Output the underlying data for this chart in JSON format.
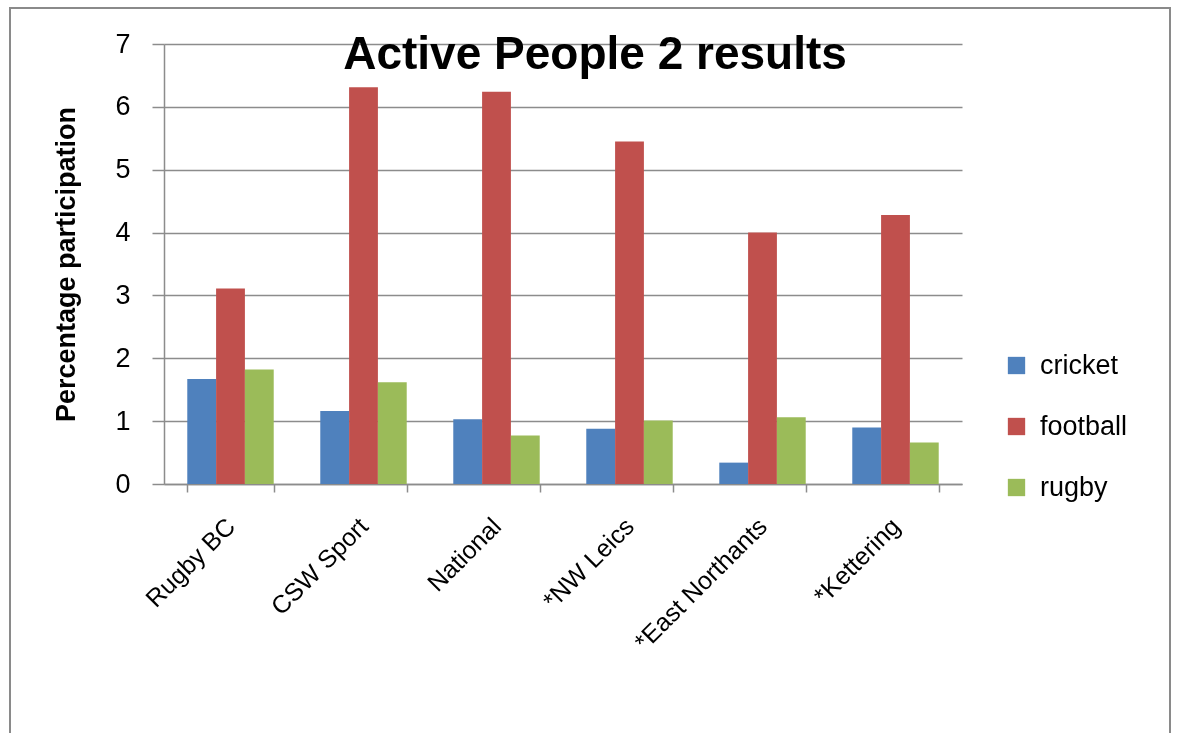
{
  "chart_data": {
    "type": "bar",
    "title": "Active People 2 results",
    "ylabel": "Percentage participation",
    "categories": [
      "Rugby BC",
      "CSW Sport",
      "National",
      "*NW Leics",
      "*East Northants",
      "*Kettering"
    ],
    "series": [
      {
        "name": "cricket",
        "color": "#4f81bd",
        "values": [
          1.67,
          1.16,
          1.03,
          0.88,
          0.34,
          0.9
        ]
      },
      {
        "name": "football",
        "color": "#c0504d",
        "values": [
          3.11,
          6.31,
          6.24,
          5.45,
          4.0,
          4.28
        ]
      },
      {
        "name": "rugby",
        "color": "#9bbb59",
        "values": [
          1.82,
          1.62,
          0.77,
          1.01,
          1.06,
          0.66
        ]
      }
    ],
    "ylim": [
      0,
      7
    ],
    "yticks": [
      0,
      1,
      2,
      3,
      4,
      5,
      6,
      7
    ],
    "grid": "y",
    "legend": "right"
  }
}
